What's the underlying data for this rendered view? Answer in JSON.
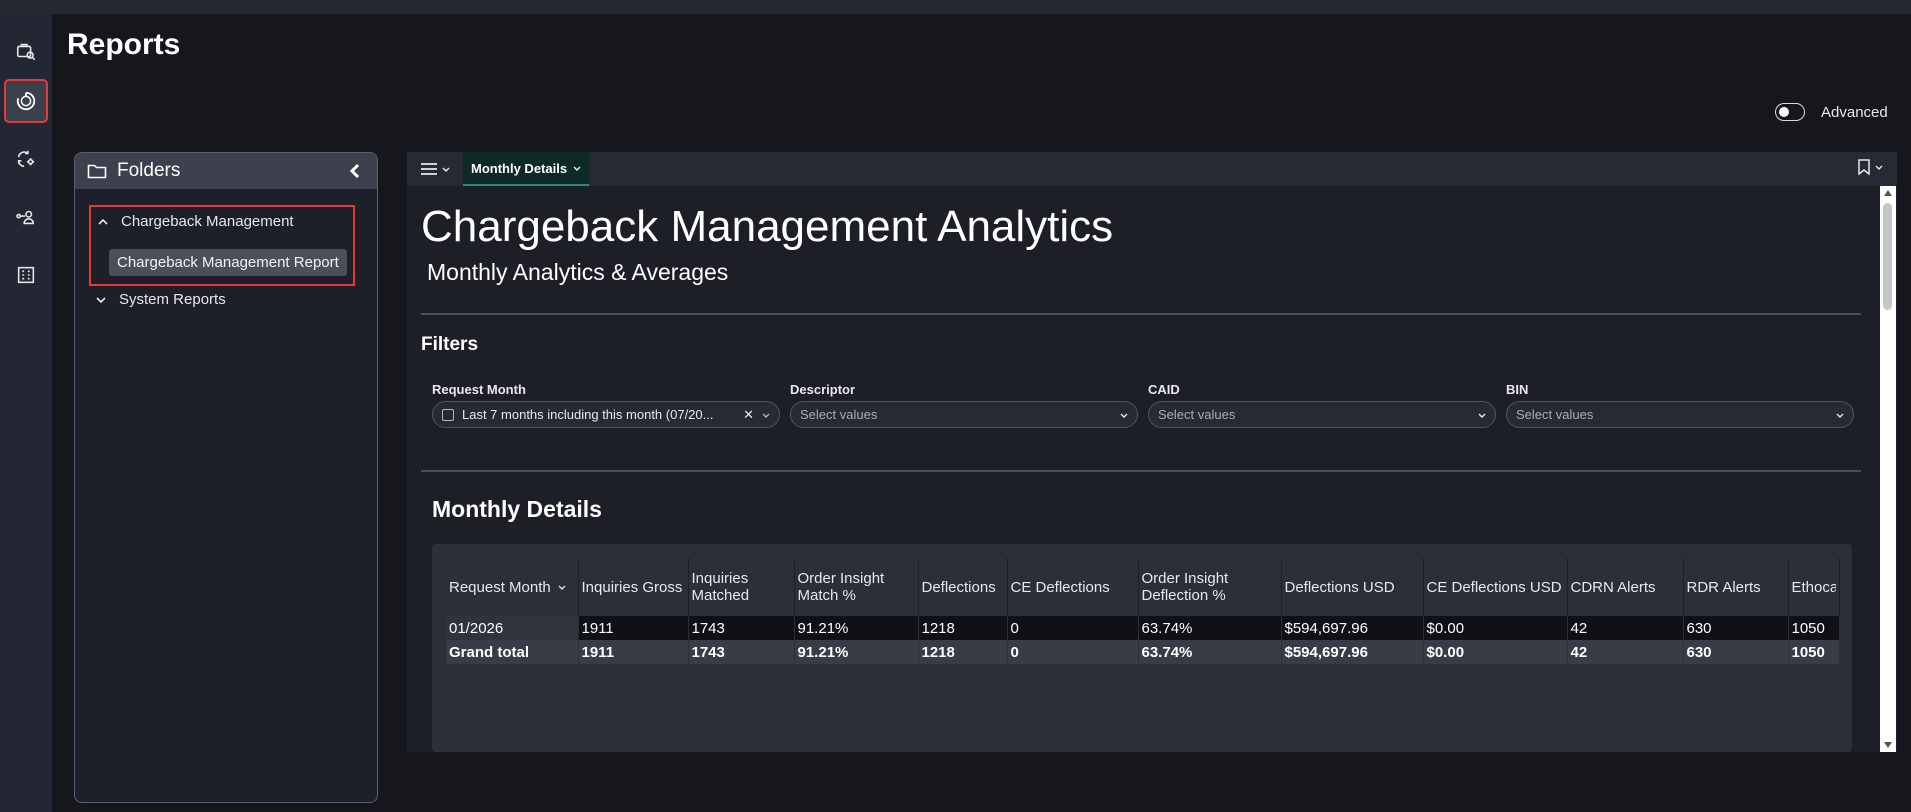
{
  "page": {
    "title": "Reports"
  },
  "rail": [
    {
      "name": "search-reports-icon"
    },
    {
      "name": "reports-icon",
      "active": true
    },
    {
      "name": "sync-settings-icon"
    },
    {
      "name": "user-routing-icon"
    },
    {
      "name": "building-icon"
    }
  ],
  "advanced": {
    "label": "Advanced",
    "enabled": false
  },
  "folders": {
    "title": "Folders",
    "groups": [
      {
        "label": "Chargeback Management",
        "expanded": true,
        "items": [
          {
            "label": "Chargeback Management Report"
          }
        ]
      },
      {
        "label": "System Reports",
        "expanded": false,
        "items": []
      }
    ]
  },
  "report_toolbar": {
    "active_tab": "Monthly Details"
  },
  "report": {
    "title": "Chargeback Management Analytics",
    "subtitle": "Monthly Analytics & Averages",
    "filters_heading": "Filters",
    "filters": [
      {
        "label": "Request Month",
        "value": "Last 7 months including this month (07/20...",
        "placeholder": ""
      },
      {
        "label": "Descriptor",
        "value": "",
        "placeholder": "Select values"
      },
      {
        "label": "CAID",
        "value": "",
        "placeholder": "Select values"
      },
      {
        "label": "BIN",
        "value": "",
        "placeholder": "Select values"
      }
    ],
    "monthly_heading": "Monthly Details",
    "table": {
      "columns": [
        {
          "l1": "Request Month",
          "l2": ""
        },
        {
          "l1": "Inquiries Gross",
          "l2": ""
        },
        {
          "l1": "Inquiries",
          "l2": "Matched"
        },
        {
          "l1": "Order Insight",
          "l2": "Match %"
        },
        {
          "l1": "Deflections",
          "l2": ""
        },
        {
          "l1": "CE Deflections",
          "l2": ""
        },
        {
          "l1": "Order Insight",
          "l2": "Deflection %"
        },
        {
          "l1": "Deflections USD",
          "l2": ""
        },
        {
          "l1": "CE Deflections USD",
          "l2": ""
        },
        {
          "l1": "CDRN Alerts",
          "l2": ""
        },
        {
          "l1": "RDR Alerts",
          "l2": ""
        },
        {
          "l1": "Ethoca",
          "l2": ""
        }
      ],
      "rows": [
        [
          "01/2026",
          "1911",
          "1743",
          "91.21%",
          "1218",
          "0",
          "63.74%",
          "$594,697.96",
          "$0.00",
          "42",
          "630",
          "1050"
        ],
        [
          "Grand total",
          "1911",
          "1743",
          "91.21%",
          "1218",
          "0",
          "63.74%",
          "$594,697.96",
          "$0.00",
          "42",
          "630",
          "1050"
        ]
      ]
    }
  }
}
